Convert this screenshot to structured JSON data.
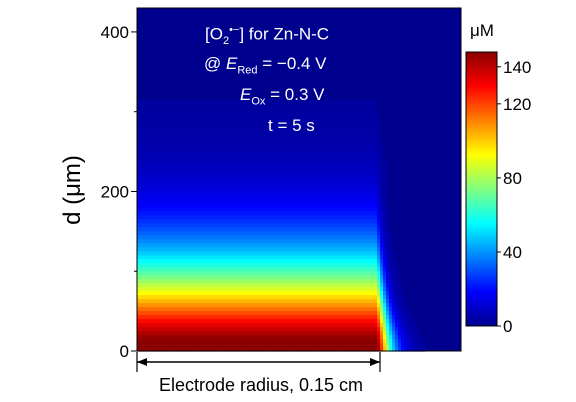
{
  "chart_data": {
    "type": "heatmap",
    "title_lines": {
      "species_open": "[O",
      "species_sub": "2",
      "species_sup": "•−",
      "species_close": "] for Zn-N-C",
      "line2_prefix": "@ ",
      "line2_var": "E",
      "line2_sub": "Red",
      "line2_value": " = −0.4 V",
      "line3_var": "E",
      "line3_sub": "Ox",
      "line3_value": " = 0.3 V",
      "line4": "t = 5 s"
    },
    "ylabel": "d (μm)",
    "xlabel": "Electrode radius, 0.15 cm",
    "ylim": [
      0,
      430
    ],
    "yticks": [
      0,
      200,
      400
    ],
    "colorbar": {
      "unit": "μM",
      "range": [
        0,
        148
      ],
      "ticks": [
        0,
        40,
        80,
        120,
        140
      ],
      "colors": [
        "#00008f",
        "#0000ff",
        "#0080ff",
        "#00ffff",
        "#80ff80",
        "#ffff00",
        "#ff8000",
        "#ff0000",
        "#8b0000"
      ]
    },
    "field": {
      "max_concentration": 148,
      "decay_length_um": 95,
      "electrode_edge_fraction": 0.74,
      "background": "#00008f"
    }
  }
}
